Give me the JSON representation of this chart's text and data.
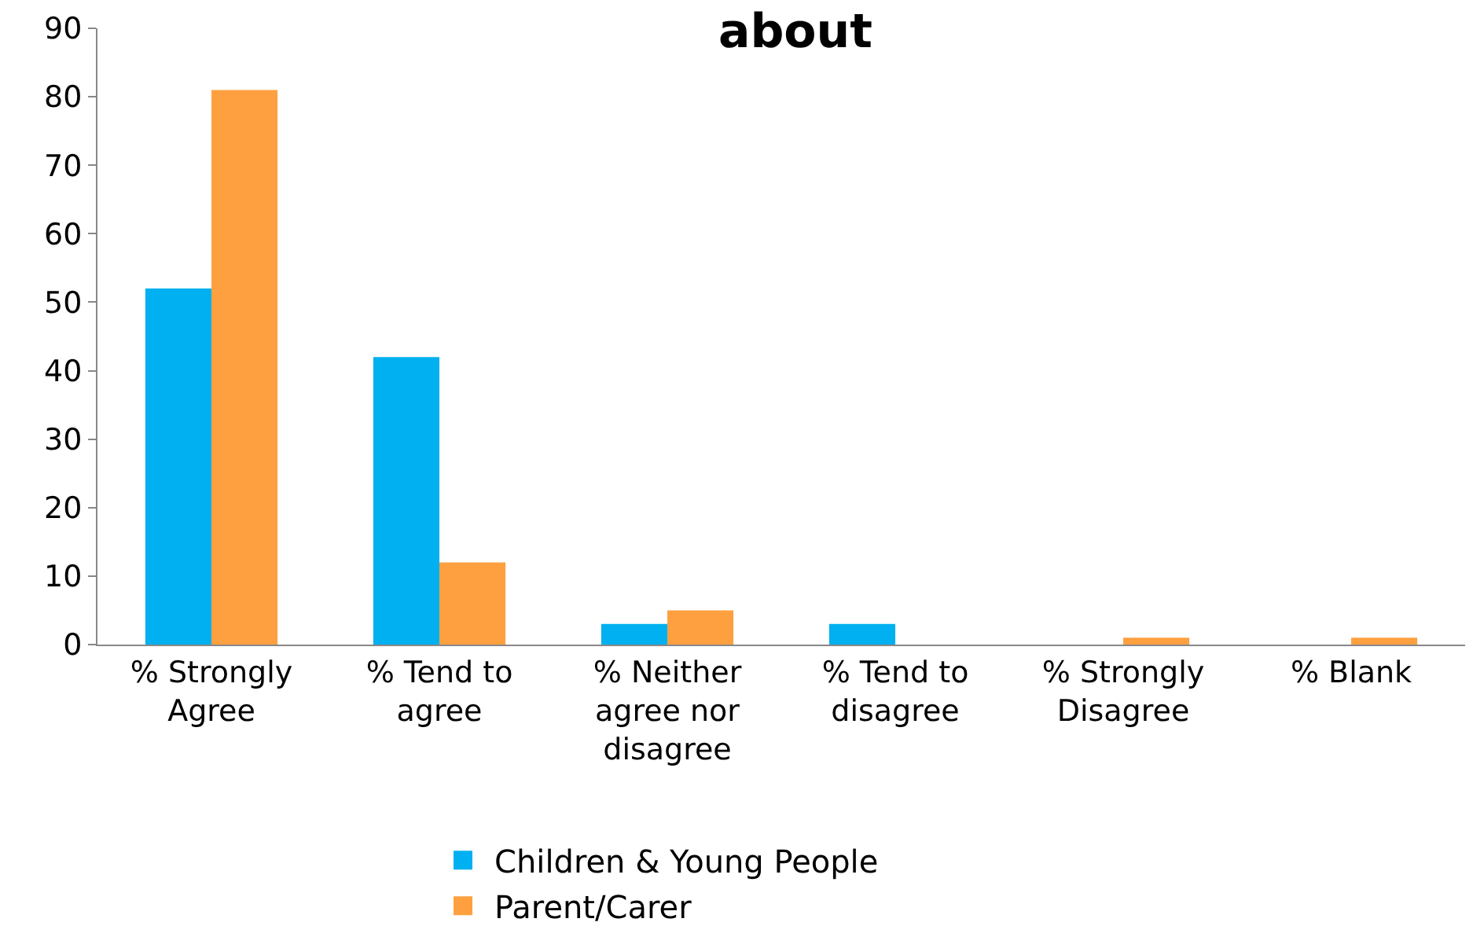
{
  "chart_data": {
    "type": "bar",
    "title": "about",
    "categories": [
      "% Strongly\nAgree",
      "% Tend to\nagree",
      "% Neither\nagree nor\ndisagree",
      "% Tend to\ndisagree",
      "% Strongly\nDisagree",
      "% Blank"
    ],
    "series": [
      {
        "name": "Children & Young People",
        "color": "#00b0f0",
        "values": [
          52,
          42,
          3,
          3,
          0,
          0
        ]
      },
      {
        "name": "Parent/Carer",
        "color": "#ffa040",
        "values": [
          81,
          12,
          5,
          0,
          1,
          1
        ]
      }
    ],
    "ylim": [
      0,
      90
    ],
    "yticks": [
      0,
      10,
      20,
      30,
      40,
      50,
      60,
      70,
      80,
      90
    ],
    "grid": false,
    "legend": "bottom"
  }
}
